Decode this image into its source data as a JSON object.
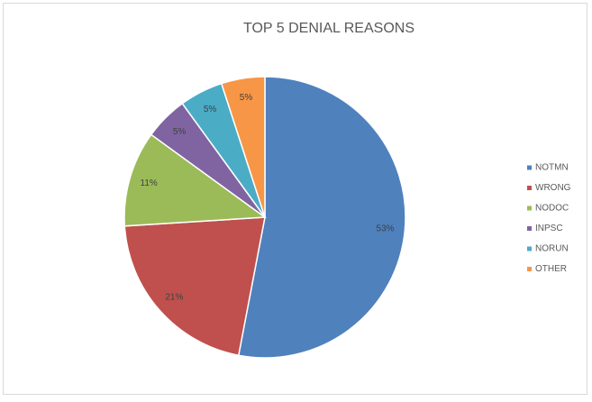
{
  "chart_data": {
    "type": "pie",
    "title": "TOP 5 DENIAL REASONS",
    "categories": [
      "NOTMN",
      "WRONG",
      "NODOC",
      "INPSC",
      "NORUN",
      "OTHER"
    ],
    "values": [
      53,
      21,
      11,
      5,
      5,
      5
    ],
    "value_labels": [
      "53%",
      "21%",
      "11%",
      "5%",
      "5%",
      "5%"
    ],
    "colors": [
      "#4f81bd",
      "#c0504d",
      "#9bbb59",
      "#8064a2",
      "#4bacc6",
      "#f79646"
    ],
    "legend": "right"
  }
}
